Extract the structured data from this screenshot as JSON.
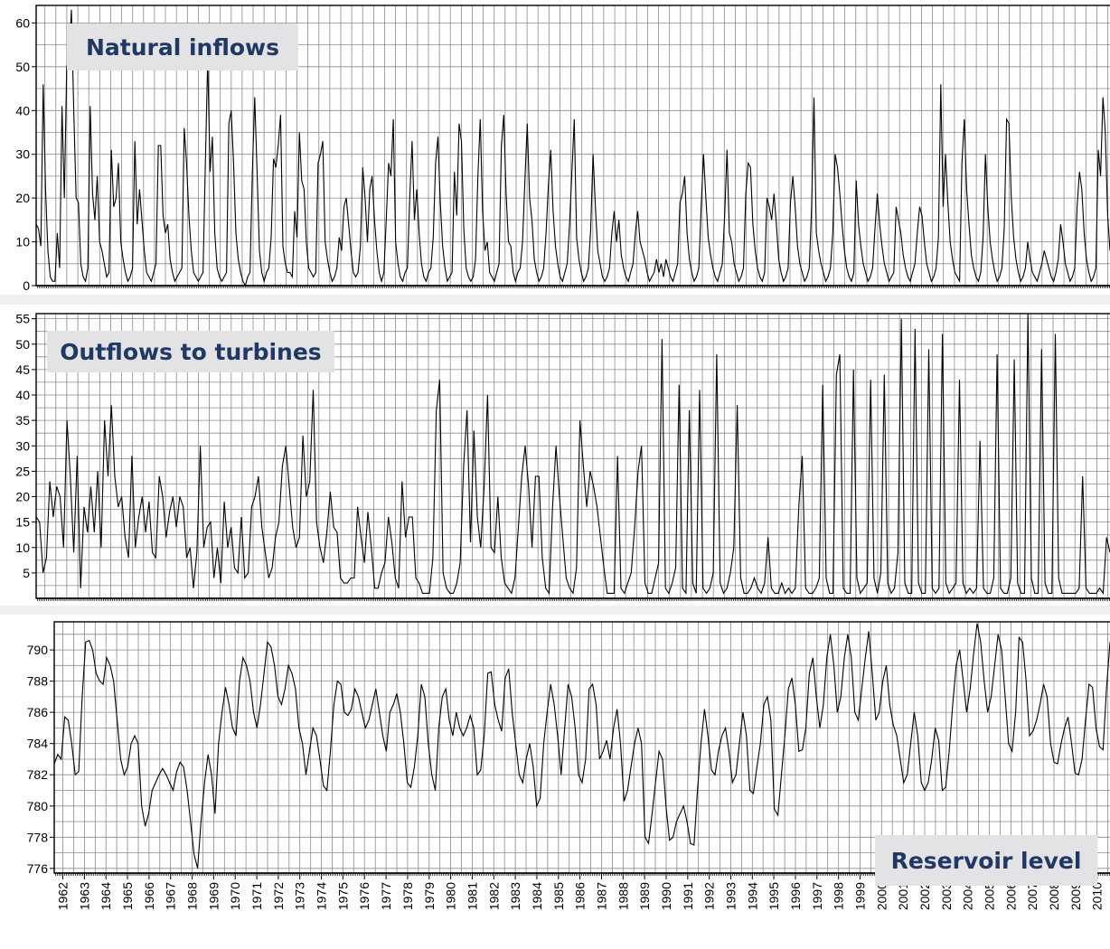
{
  "chart_data": [
    {
      "type": "line",
      "title": "Natural inflows",
      "x_range": [
        1961.6,
        2010.6
      ],
      "ylim": [
        0,
        64
      ],
      "y_ticks": [
        0,
        10,
        20,
        30,
        40,
        50,
        60
      ],
      "grid": true,
      "series": [
        {
          "values": [
            14,
            13,
            9,
            46,
            22,
            8,
            2,
            1,
            1,
            12,
            4,
            41,
            20,
            50,
            52,
            63,
            40,
            20,
            19,
            5,
            2,
            1,
            4,
            41,
            21,
            15,
            25,
            10,
            8,
            5,
            2,
            3,
            31,
            18,
            20,
            28,
            10,
            6,
            3,
            1,
            2,
            4,
            33,
            14,
            22,
            15,
            8,
            3,
            2,
            1,
            3,
            5,
            32,
            32,
            16,
            12,
            14,
            6,
            3,
            1,
            2,
            3,
            4,
            36,
            28,
            16,
            8,
            3,
            2,
            1,
            2,
            3,
            28,
            52,
            26,
            34,
            12,
            4,
            2,
            1,
            2,
            3,
            37,
            40,
            28,
            12,
            6,
            3,
            1,
            0,
            2,
            3,
            26,
            43,
            26,
            8,
            3,
            1,
            3,
            4,
            11,
            29,
            27,
            32,
            39,
            9,
            5,
            3,
            3,
            2,
            17,
            11,
            35,
            24,
            22,
            10,
            4,
            3,
            2,
            3,
            28,
            30,
            33,
            10,
            6,
            3,
            1,
            2,
            4,
            11,
            8,
            18,
            20,
            14,
            8,
            3,
            2,
            3,
            9,
            27,
            20,
            10,
            22,
            25,
            15,
            8,
            3,
            1,
            3,
            15,
            28,
            25,
            38,
            10,
            5,
            2,
            1,
            3,
            4,
            20,
            33,
            15,
            22,
            12,
            5,
            2,
            1,
            3,
            4,
            11,
            28,
            34,
            19,
            9,
            4,
            1,
            2,
            3,
            26,
            16,
            37,
            33,
            13,
            4,
            2,
            1,
            2,
            6,
            25,
            38,
            17,
            8,
            10,
            3,
            2,
            1,
            3,
            5,
            32,
            39,
            21,
            10,
            9,
            3,
            1,
            3,
            4,
            10,
            24,
            37,
            20,
            15,
            6,
            3,
            1,
            2,
            4,
            12,
            23,
            31,
            17,
            9,
            5,
            2,
            1,
            3,
            5,
            14,
            26,
            38,
            11,
            6,
            3,
            1,
            2,
            4,
            13,
            30,
            18,
            8,
            5,
            2,
            1,
            2,
            4,
            12,
            17,
            10,
            15,
            7,
            4,
            2,
            1,
            3,
            5,
            12,
            17,
            10,
            8,
            6,
            3,
            1,
            2,
            3,
            6,
            3,
            5,
            2,
            6,
            4,
            2,
            1,
            3,
            5,
            19,
            21,
            25,
            12,
            6,
            3,
            1,
            2,
            4,
            18,
            30,
            20,
            11,
            7,
            4,
            2,
            1,
            3,
            5,
            16,
            31,
            12,
            10,
            5,
            3,
            1,
            2,
            4,
            21,
            28,
            27,
            14,
            8,
            4,
            2,
            1,
            3,
            20,
            18,
            15,
            21,
            14,
            6,
            3,
            1,
            2,
            4,
            19,
            25,
            18,
            9,
            5,
            3,
            1,
            2,
            4,
            18,
            43,
            12,
            8,
            5,
            3,
            1,
            2,
            4,
            12,
            30,
            27,
            21,
            14,
            8,
            4,
            2,
            1,
            3,
            24,
            14,
            9,
            5,
            3,
            1,
            2,
            4,
            13,
            21,
            14,
            9,
            5,
            3,
            1,
            2,
            3,
            18,
            15,
            12,
            7,
            4,
            2,
            1,
            3,
            5,
            12,
            18,
            16,
            10,
            5,
            3,
            1,
            2,
            4,
            11,
            46,
            18,
            30,
            19,
            10,
            6,
            3,
            2,
            1,
            28,
            38,
            22,
            14,
            7,
            4,
            2,
            1,
            3,
            11,
            30,
            18,
            10,
            6,
            3,
            1,
            2,
            4,
            13,
            38,
            37,
            20,
            11,
            6,
            3,
            1,
            2,
            4,
            10,
            6,
            3,
            2,
            1,
            3,
            5,
            8,
            6,
            4,
            2,
            1,
            3,
            6,
            14,
            10,
            5,
            3,
            1,
            2,
            4,
            18,
            26,
            22,
            12,
            6,
            3,
            1,
            2,
            4,
            31,
            25,
            43,
            35,
            16,
            8
          ]
        }
      ]
    },
    {
      "type": "line",
      "title": "Outflows to turbines",
      "x_range": [
        1961.6,
        2010.6
      ],
      "ylim": [
        0,
        56
      ],
      "y_ticks": [
        5,
        10,
        15,
        20,
        25,
        30,
        35,
        40,
        45,
        50,
        55
      ],
      "grid": true,
      "series": [
        {
          "values": [
            16,
            15,
            5,
            8,
            23,
            16,
            22,
            20,
            10,
            35,
            24,
            9,
            28,
            2,
            18,
            13,
            22,
            13,
            25,
            10,
            35,
            24,
            38,
            24,
            18,
            20,
            12,
            8,
            28,
            10,
            16,
            20,
            13,
            19,
            9,
            8,
            24,
            20,
            12,
            17,
            20,
            14,
            20,
            18,
            8,
            10,
            2,
            9,
            30,
            10,
            14,
            15,
            4,
            10,
            3,
            19,
            10,
            14,
            6,
            5,
            16,
            4,
            5,
            18,
            20,
            24,
            14,
            9,
            4,
            6,
            12,
            15,
            26,
            30,
            22,
            14,
            10,
            12,
            32,
            20,
            23,
            41,
            15,
            10,
            7,
            13,
            21,
            14,
            13,
            4,
            3,
            3,
            4,
            4,
            18,
            12,
            7,
            17,
            10,
            2,
            2,
            5,
            7,
            16,
            11,
            4,
            2,
            23,
            12,
            16,
            16,
            4,
            3,
            1,
            1,
            1,
            8,
            37,
            43,
            5,
            2,
            1,
            1,
            3,
            7,
            26,
            37,
            11,
            33,
            16,
            10,
            22,
            40,
            10,
            9,
            20,
            8,
            3,
            2,
            1,
            4,
            14,
            24,
            30,
            22,
            10,
            24,
            24,
            8,
            2,
            1,
            18,
            30,
            20,
            12,
            4,
            2,
            1,
            6,
            35,
            26,
            18,
            25,
            22,
            18,
            12,
            6,
            1,
            1,
            1,
            28,
            2,
            1,
            3,
            5,
            14,
            25,
            30,
            3,
            1,
            1,
            4,
            7,
            51,
            2,
            1,
            3,
            6,
            42,
            2,
            1,
            37,
            3,
            1,
            41,
            2,
            1,
            2,
            5,
            48,
            3,
            1,
            2,
            5,
            10,
            38,
            4,
            1,
            1,
            2,
            4,
            2,
            1,
            3,
            12,
            2,
            1,
            1,
            3,
            1,
            2,
            1,
            2,
            18,
            28,
            2,
            1,
            1,
            2,
            4,
            42,
            4,
            1,
            1,
            44,
            48,
            2,
            1,
            1,
            45,
            4,
            1,
            2,
            3,
            43,
            4,
            1,
            5,
            44,
            3,
            1,
            2,
            9,
            55,
            3,
            1,
            1,
            53,
            3,
            1,
            1,
            49,
            2,
            1,
            2,
            52,
            3,
            1,
            2,
            3,
            43,
            3,
            1,
            2,
            1,
            2,
            31,
            2,
            1,
            1,
            4,
            48,
            2,
            1,
            1,
            4,
            47,
            3,
            1,
            1,
            56,
            4,
            1,
            1,
            49,
            3,
            1,
            1,
            52,
            4,
            1,
            1,
            1,
            1,
            1,
            2,
            24,
            2,
            1,
            1,
            1,
            2,
            1,
            12,
            9
          ]
        }
      ]
    },
    {
      "type": "line",
      "title": "Reservoir level",
      "x_range": [
        1961.6,
        2010.6
      ],
      "ylim": [
        775.7,
        791.8
      ],
      "y_ticks": [
        776,
        778,
        780,
        782,
        784,
        786,
        788,
        790
      ],
      "grid": true,
      "x_tick_labels": [
        "1962",
        "1963",
        "1964",
        "1965",
        "1966",
        "1967",
        "1968",
        "1969",
        "1970",
        "1971",
        "1972",
        "1973",
        "1974",
        "1975",
        "1976",
        "1977",
        "1978",
        "1979",
        "1980",
        "1981",
        "1982",
        "1983",
        "1984",
        "1985",
        "1986",
        "1987",
        "1988",
        "1989",
        "1990",
        "1991",
        "1992",
        "1993",
        "1994",
        "1995",
        "1996",
        "1997",
        "1998",
        "1999",
        "2000",
        "2001",
        "2002",
        "2003",
        "2004",
        "2005",
        "2006",
        "2007",
        "2008",
        "2009",
        "2010"
      ],
      "series": [
        {
          "values": [
            782.7,
            783.3,
            783.0,
            785.7,
            785.5,
            784.0,
            782.0,
            782.2,
            787.0,
            790.5,
            790.6,
            790.0,
            788.5,
            788.0,
            787.8,
            789.5,
            789.0,
            788.0,
            785.5,
            783.0,
            782.0,
            782.5,
            784.0,
            784.5,
            784.0,
            780.0,
            778.7,
            779.5,
            781.0,
            781.5,
            782.0,
            782.4,
            782.0,
            781.5,
            781.0,
            782.2,
            782.8,
            782.5,
            781.0,
            779.0,
            776.9,
            776.0,
            779.0,
            781.5,
            783.3,
            782.0,
            779.5,
            784.0,
            786.0,
            787.6,
            786.5,
            785.0,
            784.5,
            788.0,
            789.5,
            789.0,
            788.0,
            786.0,
            785.0,
            786.5,
            788.5,
            790.5,
            790.2,
            789.0,
            787.0,
            786.5,
            787.5,
            789.0,
            788.5,
            787.5,
            785.0,
            784.0,
            782.0,
            783.5,
            785.0,
            784.5,
            783.0,
            781.3,
            781.0,
            783.5,
            786.5,
            788.0,
            787.8,
            786.0,
            785.8,
            786.2,
            787.5,
            787.0,
            786.0,
            785.0,
            785.5,
            786.5,
            787.5,
            786.0,
            784.5,
            783.5,
            786.0,
            786.5,
            787.2,
            786.0,
            784.0,
            781.5,
            781.2,
            782.5,
            784.5,
            787.8,
            787.0,
            784.0,
            782.0,
            781.0,
            785.0,
            787.0,
            787.5,
            785.5,
            784.5,
            786.0,
            785.0,
            784.5,
            785.0,
            785.8,
            785.0,
            782.0,
            782.3,
            784.5,
            788.5,
            788.6,
            786.5,
            785.5,
            784.8,
            788.2,
            788.8,
            786.0,
            784.0,
            782.0,
            781.5,
            783.0,
            784.0,
            782.5,
            780.0,
            780.5,
            784.0,
            786.0,
            787.8,
            786.5,
            784.5,
            782.0,
            785.0,
            787.8,
            787.0,
            785.0,
            782.0,
            781.5,
            783.0,
            787.5,
            787.8,
            786.5,
            783.0,
            783.5,
            784.2,
            783.0,
            785.0,
            786.2,
            784.0,
            780.3,
            781.0,
            782.5,
            784.0,
            785.0,
            784.0,
            778.0,
            777.6,
            779.5,
            781.5,
            783.5,
            783.0,
            780.0,
            777.8,
            778.0,
            779.0,
            779.5,
            780.0,
            779.0,
            777.6,
            777.5,
            781.0,
            784.0,
            786.2,
            784.5,
            782.3,
            782.0,
            783.5,
            784.5,
            785.0,
            783.5,
            781.5,
            782.0,
            784.0,
            786.0,
            784.5,
            781.0,
            780.8,
            782.5,
            784.0,
            786.5,
            787.0,
            785.5,
            779.8,
            779.4,
            782.0,
            784.5,
            787.5,
            788.2,
            786.5,
            783.5,
            783.6,
            785.0,
            788.5,
            789.5,
            787.0,
            785.0,
            786.5,
            789.5,
            791.0,
            789.0,
            786.0,
            787.0,
            789.5,
            791.0,
            789.5,
            786.0,
            785.5,
            787.5,
            789.5,
            791.2,
            788.5,
            785.5,
            786.0,
            788.0,
            789.0,
            786.5,
            785.2,
            784.5,
            783.0,
            781.5,
            782.0,
            784.0,
            786.0,
            784.5,
            781.5,
            781.0,
            781.5,
            783.0,
            785.0,
            784.2,
            781.0,
            781.2,
            783.5,
            786.5,
            789.0,
            790.0,
            788.0,
            786.0,
            787.5,
            789.8,
            791.7,
            790.5,
            788.0,
            786.0,
            787.0,
            789.0,
            791.0,
            790.0,
            787.0,
            784.0,
            783.5,
            786.0,
            790.8,
            790.5,
            788.0,
            784.5,
            784.8,
            785.5,
            786.5,
            787.8,
            787.0,
            784.0,
            782.8,
            782.7,
            784.0,
            785.0,
            785.7,
            784.0,
            782.1,
            782.0,
            783.0,
            785.5,
            787.8,
            787.6,
            785.0,
            783.8,
            783.6,
            787.5,
            790.5
          ]
        }
      ]
    }
  ]
}
